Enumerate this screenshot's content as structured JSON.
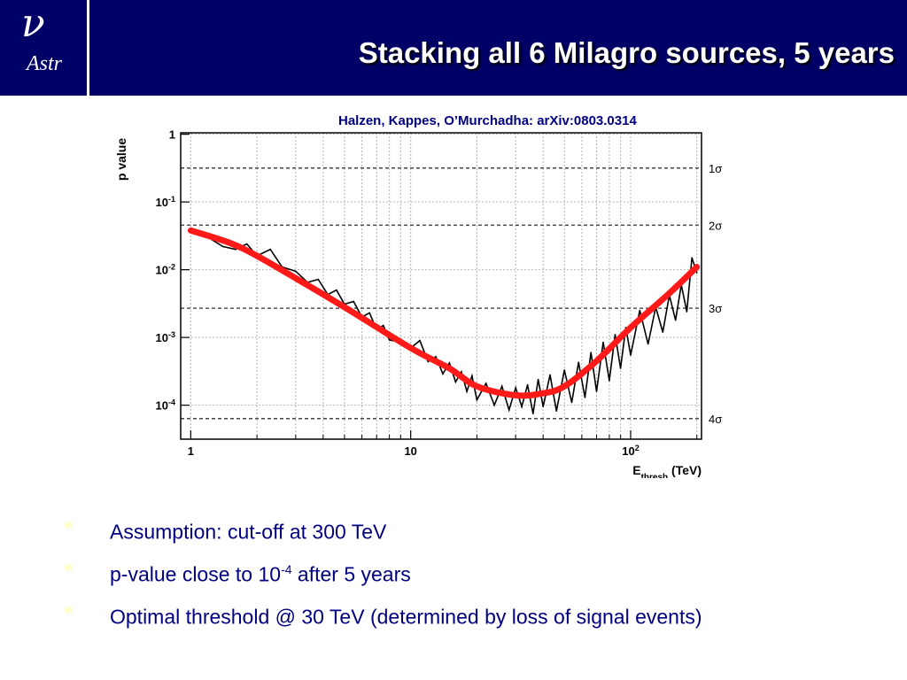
{
  "header": {
    "logo_glyph": "ν",
    "logo_text": "Astr",
    "title": "Stacking all 6 Milagro sources, 5 years"
  },
  "reference": "Halzen, Kappes, O’Murchadha: arXiv:0803.0314",
  "chart_data": {
    "type": "line",
    "xlabel": "E",
    "xlabel_sub": "thresh",
    "xlabel_unit": "(TeV)",
    "ylabel": "p value",
    "x_scale": "log",
    "y_scale": "log",
    "xlim": [
      0.9,
      210
    ],
    "ylim": [
      3.15e-05,
      1.05
    ],
    "grid": true,
    "x_ticks": [
      {
        "value": 1,
        "label": "1"
      },
      {
        "value": 10,
        "label": "10"
      },
      {
        "value": 100,
        "label": "10",
        "sup": "2"
      }
    ],
    "y_ticks": [
      {
        "value": 1,
        "label": "1",
        "sup": ""
      },
      {
        "value": 0.1,
        "label": "10",
        "sup": "-1"
      },
      {
        "value": 0.01,
        "label": "10",
        "sup": "-2"
      },
      {
        "value": 0.001,
        "label": "10",
        "sup": "-3"
      },
      {
        "value": 0.0001,
        "label": "10",
        "sup": "-4"
      }
    ],
    "sigma_lines": [
      {
        "value": 0.317,
        "label": "1σ"
      },
      {
        "value": 0.0455,
        "label": "2σ"
      },
      {
        "value": 0.0027,
        "label": "3σ"
      },
      {
        "value": 6.33e-05,
        "label": "4σ"
      }
    ],
    "series": [
      {
        "style": "fit",
        "color": "#ff1a1a",
        "x": [
          1,
          1.5,
          2,
          3,
          5,
          10,
          15,
          20,
          30,
          40,
          50,
          70,
          100,
          150,
          200
        ],
        "values": [
          0.038,
          0.025,
          0.016,
          0.0075,
          0.0028,
          0.0007,
          0.00035,
          0.00019,
          0.00014,
          0.00015,
          0.00019,
          0.00045,
          0.0014,
          0.0045,
          0.011
        ]
      },
      {
        "style": "data",
        "color": "#000000",
        "x": [
          1,
          1.2,
          1.4,
          1.6,
          1.8,
          2,
          2.3,
          2.6,
          3,
          3.4,
          3.8,
          4.2,
          4.6,
          5,
          5.5,
          6,
          6.5,
          7,
          7.5,
          8,
          9,
          10,
          11,
          12,
          13,
          14,
          15,
          16,
          17,
          18,
          19,
          20,
          22,
          24,
          26,
          28,
          30,
          32,
          34,
          36,
          38,
          40,
          43,
          46,
          50,
          54,
          58,
          62,
          66,
          70,
          75,
          80,
          85,
          90,
          95,
          100,
          110,
          120,
          130,
          140,
          150,
          160,
          170,
          180,
          190,
          200
        ],
        "values": [
          0.04,
          0.03,
          0.022,
          0.02,
          0.024,
          0.016,
          0.02,
          0.011,
          0.0095,
          0.0065,
          0.0072,
          0.0043,
          0.005,
          0.0031,
          0.0034,
          0.002,
          0.0023,
          0.0013,
          0.0015,
          0.00092,
          0.00085,
          0.0007,
          0.0009,
          0.00044,
          0.00052,
          0.00029,
          0.00042,
          0.00022,
          0.00031,
          0.00016,
          0.00027,
          0.00012,
          0.00021,
          0.0001,
          0.00019,
          8.5e-05,
          0.00018,
          9.5e-05,
          0.0002,
          7.5e-05,
          0.00024,
          9.5e-05,
          0.00028,
          8.2e-05,
          0.00033,
          0.00011,
          0.00043,
          0.00013,
          0.0006,
          0.00016,
          0.00085,
          0.00023,
          0.0011,
          0.00035,
          0.0014,
          0.00055,
          0.0025,
          0.0008,
          0.0028,
          0.0012,
          0.0042,
          0.0018,
          0.006,
          0.0024,
          0.015,
          0.009
        ]
      }
    ]
  },
  "bullets": [
    {
      "text": "Assumption: cut-off at 300 TeV",
      "sup": "",
      "after": ""
    },
    {
      "text": "p-value close to 10",
      "sup": "-4",
      "after": " after 5 years"
    },
    {
      "text": "Optimal threshold @ 30 TeV (determined by loss of signal events)",
      "sup": "",
      "after": ""
    }
  ],
  "colors": {
    "header_bg": "#000066",
    "text_blue": "#000080",
    "fit_red": "#ff1a1a",
    "bullet_mark": "#ffffcc"
  }
}
